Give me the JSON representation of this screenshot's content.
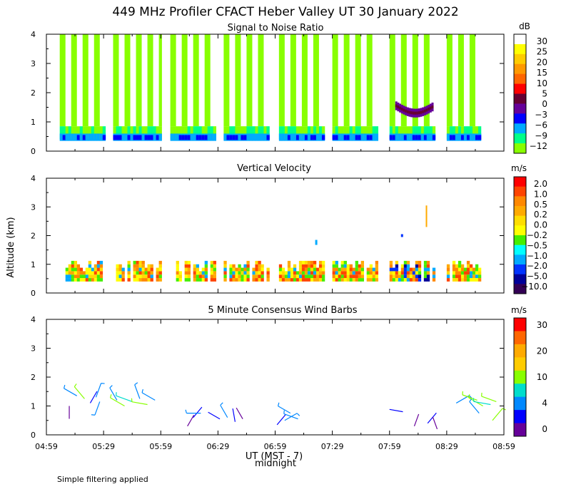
{
  "figure": {
    "title": "449 MHz Profiler CFACT Heber Valley UT 30 January 2022",
    "ylabel": "Altitude (km)",
    "xlabel": "UT  (MST - 7)",
    "midnight_label": "midnight",
    "footnote": "Simple filtering applied"
  },
  "chart_data": [
    {
      "type": "heatmap",
      "title": "Signal to Noise Ratio",
      "unit": "dB",
      "xlabel": "UT  (MST - 7)",
      "ylabel": "Altitude (km)",
      "x_range_minutes_after_0459": [
        0,
        240
      ],
      "ylim": [
        0,
        4
      ],
      "y_ticks": [
        "0",
        "1",
        "2",
        "3",
        "4"
      ],
      "x_ticks": [
        "04:59",
        "05:29",
        "05:59",
        "06:29",
        "06:59",
        "07:29",
        "07:59",
        "08:29",
        "08:59"
      ],
      "colorbar": {
        "labels": [
          "30",
          "25",
          "20",
          "15",
          "10",
          "5",
          "0",
          "−3",
          "−6",
          "−9",
          "−12"
        ],
        "colors": [
          "#ffffff",
          "#ffff00",
          "#ffcc00",
          "#ff9900",
          "#ff6600",
          "#ff0000",
          "#660033",
          "#660099",
          "#0000ff",
          "#00aaff",
          "#00ff88",
          "#88ff00"
        ]
      },
      "profile_blocks_minutes": [
        [
          7,
          30
        ],
        [
          35,
          60
        ],
        [
          65,
          88
        ],
        [
          93,
          116
        ],
        [
          122,
          145
        ],
        [
          150,
          174
        ],
        [
          180,
          204
        ],
        [
          210,
          228
        ]
      ],
      "features": "Low SNR layer (-6 to -12 dB) below ~0.8 km; alternating green/white vertical columns aloft; elevated -3 to 0 dB arc near 1.5 km around 08:00-08:20"
    },
    {
      "type": "heatmap",
      "title": "Vertical Velocity",
      "unit": "m/s",
      "xlabel": "UT  (MST - 7)",
      "ylabel": "Altitude (km)",
      "x_range_minutes_after_0459": [
        0,
        240
      ],
      "ylim": [
        0,
        4
      ],
      "y_ticks": [
        "0",
        "1",
        "2",
        "3",
        "4"
      ],
      "x_ticks": [
        "04:59",
        "05:29",
        "05:59",
        "06:29",
        "06:59",
        "07:29",
        "07:59",
        "08:29",
        "08:59"
      ],
      "colorbar": {
        "labels": [
          "2.0",
          "1.0",
          "0.5",
          "0.2",
          "0.0",
          "−0.2",
          "−0.5",
          "−1.0",
          "−2.0",
          "−5.0",
          "−10.0"
        ],
        "colors": [
          "#ff0000",
          "#ff4400",
          "#ff8800",
          "#ffaa00",
          "#ffdd00",
          "#ffff00",
          "#44ee00",
          "#00ffff",
          "#00aaff",
          "#0033ff",
          "#000099",
          "#330055"
        ]
      },
      "features": "Mostly weak positive (0.0 to 1.0 m/s) velocities between 0.4 and 1.2 km; downward (negative) pockets near 07:40 and 08:00-08:20; isolated 0.5 m/s return near 3 km at 08:08"
    },
    {
      "type": "scatter",
      "title": "5 Minute Consensus Wind Barbs",
      "unit": "m/s",
      "xlabel": "UT  (MST - 7)",
      "ylabel": "Altitude (km)",
      "x_range_minutes_after_0459": [
        0,
        240
      ],
      "ylim": [
        0,
        4
      ],
      "y_ticks": [
        "0",
        "1",
        "2",
        "3",
        "4"
      ],
      "x_ticks": [
        "04:59",
        "05:29",
        "05:59",
        "06:29",
        "06:59",
        "07:29",
        "07:59",
        "08:29",
        "08:59"
      ],
      "colorbar": {
        "labels": [
          "30",
          "20",
          "10",
          "4",
          "0"
        ],
        "colors": [
          "#ff0000",
          "#ff6600",
          "#ffaa00",
          "#ffcc00",
          "#88ff00",
          "#00ddcc",
          "#0088ff",
          "#0000ff",
          "#660099"
        ]
      },
      "barbs": [
        {
          "t": 12,
          "z": 1.0,
          "spd": 2,
          "dir": 180
        },
        {
          "t": 16,
          "z": 1.35,
          "spd": 5,
          "dir": 300
        },
        {
          "t": 20,
          "z": 1.25,
          "spd": 6,
          "dir": 320
        },
        {
          "t": 23,
          "z": 1.1,
          "spd": 3,
          "dir": 30
        },
        {
          "t": 26,
          "z": 1.3,
          "spd": 5,
          "dir": 20
        },
        {
          "t": 28,
          "z": 1.15,
          "spd": 4,
          "dir": 200
        },
        {
          "t": 37,
          "z": 1.2,
          "spd": 4,
          "dir": 330
        },
        {
          "t": 41,
          "z": 1.0,
          "spd": 7,
          "dir": 300
        },
        {
          "t": 45,
          "z": 1.15,
          "spd": 8,
          "dir": 290
        },
        {
          "t": 49,
          "z": 1.25,
          "spd": 5,
          "dir": 340
        },
        {
          "t": 53,
          "z": 1.05,
          "spd": 6,
          "dir": 280
        },
        {
          "t": 57,
          "z": 1.2,
          "spd": 5,
          "dir": 300
        },
        {
          "t": 74,
          "z": 0.3,
          "spd": 2,
          "dir": 30
        },
        {
          "t": 77,
          "z": 0.6,
          "spd": 3,
          "dir": 40
        },
        {
          "t": 81,
          "z": 0.75,
          "spd": 4,
          "dir": 270
        },
        {
          "t": 91,
          "z": 0.55,
          "spd": 3,
          "dir": 300
        },
        {
          "t": 95,
          "z": 0.6,
          "spd": 4,
          "dir": 330
        },
        {
          "t": 99,
          "z": 0.45,
          "spd": 3,
          "dir": 350
        },
        {
          "t": 103,
          "z": 0.55,
          "spd": 2,
          "dir": 330
        },
        {
          "t": 121,
          "z": 0.35,
          "spd": 3,
          "dir": 40
        },
        {
          "t": 125,
          "z": 0.5,
          "spd": 4,
          "dir": 60
        },
        {
          "t": 128,
          "z": 0.75,
          "spd": 4,
          "dir": 300
        },
        {
          "t": 132,
          "z": 0.55,
          "spd": 5,
          "dir": 290
        },
        {
          "t": 187,
          "z": 0.8,
          "spd": 3,
          "dir": 280
        },
        {
          "t": 193,
          "z": 0.3,
          "spd": 2,
          "dir": 20
        },
        {
          "t": 200,
          "z": 0.4,
          "spd": 3,
          "dir": 40
        },
        {
          "t": 205,
          "z": 0.2,
          "spd": 2,
          "dir": 340
        },
        {
          "t": 215,
          "z": 1.1,
          "spd": 5,
          "dir": 60
        },
        {
          "t": 226,
          "z": 1.2,
          "spd": 6,
          "dir": 290
        },
        {
          "t": 229,
          "z": 1.0,
          "spd": 7,
          "dir": 300
        },
        {
          "t": 233,
          "z": 1.05,
          "spd": 8,
          "dir": 280
        },
        {
          "t": 227,
          "z": 0.75,
          "spd": 5,
          "dir": 320
        },
        {
          "t": 234,
          "z": 0.5,
          "spd": 6,
          "dir": 40
        },
        {
          "t": 236,
          "z": 1.15,
          "spd": 6,
          "dir": 290
        }
      ]
    }
  ]
}
